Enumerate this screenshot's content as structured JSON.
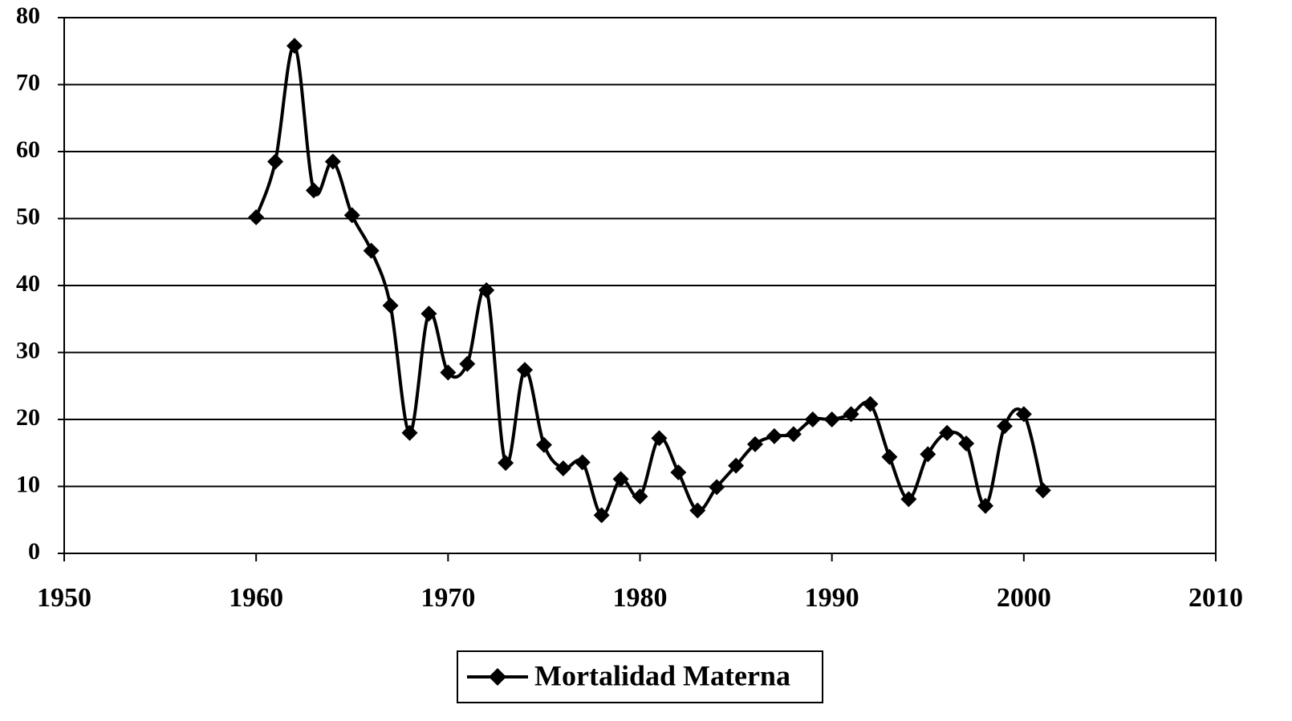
{
  "chart_data": {
    "type": "line",
    "x": [
      1960,
      1961,
      1962,
      1963,
      1964,
      1965,
      1966,
      1967,
      1968,
      1969,
      1970,
      1971,
      1972,
      1973,
      1974,
      1975,
      1976,
      1977,
      1978,
      1979,
      1980,
      1981,
      1982,
      1983,
      1984,
      1985,
      1986,
      1987,
      1988,
      1989,
      1990,
      1991,
      1992,
      1993,
      1994,
      1995,
      1996,
      1997,
      1998,
      1999,
      2000,
      2001
    ],
    "series": [
      {
        "name": "Mortalidad Materna",
        "color": "#000000",
        "values": [
          50.2,
          58.5,
          75.8,
          54.2,
          58.5,
          50.5,
          45.2,
          37,
          18,
          35.8,
          27,
          28.3,
          39.3,
          13.5,
          27.4,
          16.2,
          12.7,
          13.6,
          5.7,
          11.1,
          8.5,
          17.2,
          12.1,
          6.4,
          9.9,
          13.1,
          16.3,
          17.5,
          17.8,
          20,
          20,
          20.8,
          22.3,
          14.4,
          8.1,
          14.8,
          18,
          16.4,
          7.1,
          19,
          20.8,
          9.4
        ]
      }
    ],
    "xlim": [
      1950,
      2010
    ],
    "xticks": [
      1950,
      1960,
      1970,
      1980,
      1990,
      2000,
      2010
    ],
    "ylim": [
      0,
      80
    ],
    "yticks": [
      0,
      10,
      20,
      30,
      40,
      50,
      60,
      70,
      80
    ],
    "grid": true,
    "legend": "bottom"
  }
}
